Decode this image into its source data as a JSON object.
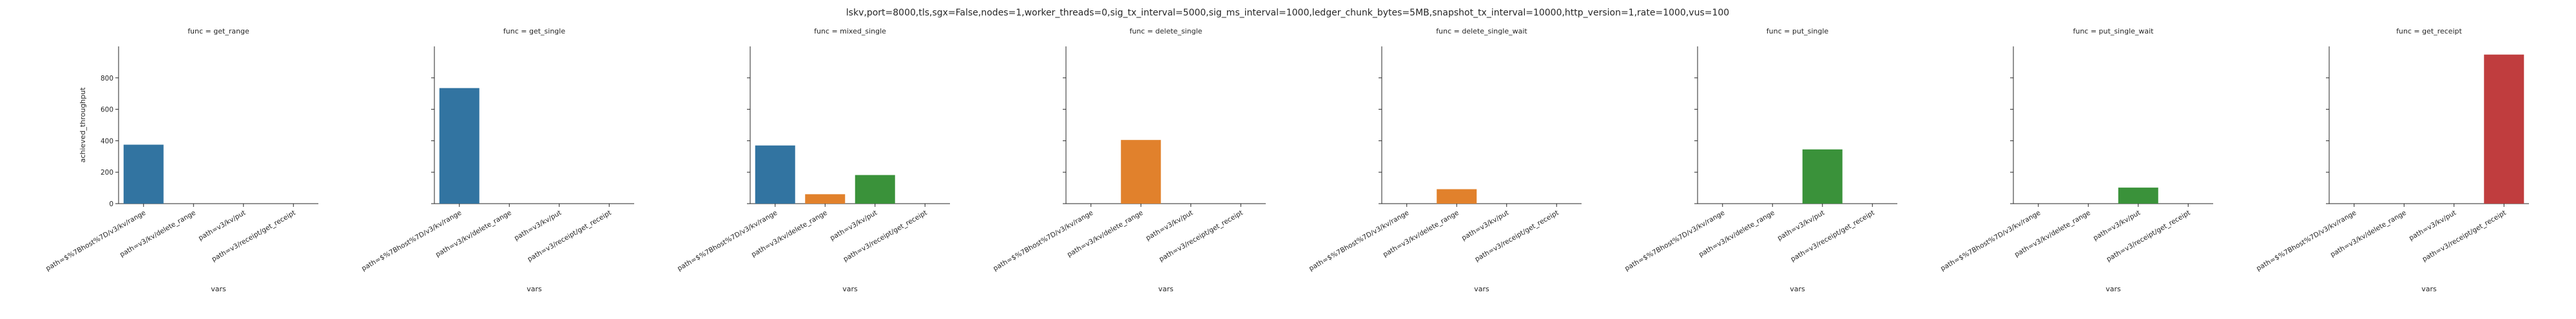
{
  "chart_data": {
    "type": "bar",
    "title": "lskv,port=8000,tls,sgx=False,nodes=1,worker_threads=0,sig_tx_interval=5000,sig_ms_interval=1000,ledger_chunk_bytes=5MB,snapshot_tx_interval=10000,http_version=1,rate=1000,vus=100",
    "xlabel": "vars",
    "ylabel": "achieved_throughput",
    "ylim": [
      0,
      1000
    ],
    "yticks": [
      0,
      200,
      400,
      600,
      800
    ],
    "grid": false,
    "categories": [
      "path=$%7Bhost%7D/v3/kv/range",
      "path=v3/kv/delete_range",
      "path=v3/kv/put",
      "path=v3/receipt/get_receipt"
    ],
    "category_colors": [
      "#3274a1",
      "#e1812c",
      "#3a923a",
      "#c03d3e"
    ],
    "panels": [
      {
        "title": "func = get_range",
        "values": [
          375,
          null,
          null,
          null
        ]
      },
      {
        "title": "func = get_single",
        "values": [
          735,
          null,
          null,
          null
        ]
      },
      {
        "title": "func = mixed_single",
        "values": [
          370,
          60,
          182,
          null
        ]
      },
      {
        "title": "func = delete_single",
        "values": [
          null,
          405,
          null,
          null
        ]
      },
      {
        "title": "func = delete_single_wait",
        "values": [
          null,
          92,
          null,
          null
        ]
      },
      {
        "title": "func = put_single",
        "values": [
          null,
          null,
          345,
          null
        ]
      },
      {
        "title": "func = put_single_wait",
        "values": [
          null,
          null,
          102,
          null
        ]
      },
      {
        "title": "func = get_receipt",
        "values": [
          null,
          null,
          null,
          948
        ]
      }
    ]
  }
}
